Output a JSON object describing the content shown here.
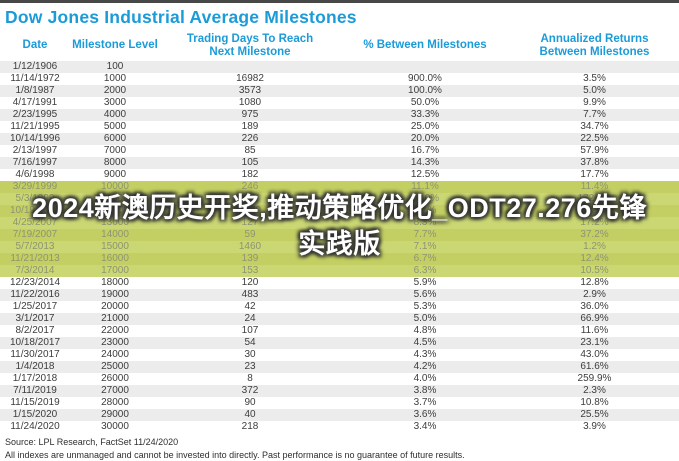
{
  "title": "Dow Jones Industrial Average Milestones",
  "header": [
    {
      "label": "Date"
    },
    {
      "label": "Milestone Level"
    },
    {
      "label": "Trading Days To Reach",
      "label2": "Next Milestone"
    },
    {
      "label": "% Between Milestones"
    },
    {
      "label": "Annualized Returns",
      "label2": "Between Milestones"
    }
  ],
  "chart_data": {
    "type": "table",
    "title": "Dow Jones Industrial Average Milestones",
    "columns": [
      "Date",
      "Milestone Level",
      "Trading Days To Reach Next Milestone",
      "% Between Milestones",
      "Annualized Returns Between Milestones"
    ],
    "rows": [
      {
        "date": "1/12/1906",
        "level": "100",
        "days": "",
        "pct": "",
        "annualized": ""
      },
      {
        "date": "11/14/1972",
        "level": "1000",
        "days": "16982",
        "pct": "900.0%",
        "annualized": "3.5%"
      },
      {
        "date": "1/8/1987",
        "level": "2000",
        "days": "3573",
        "pct": "100.0%",
        "annualized": "5.0%"
      },
      {
        "date": "4/17/1991",
        "level": "3000",
        "days": "1080",
        "pct": "50.0%",
        "annualized": "9.9%"
      },
      {
        "date": "2/23/1995",
        "level": "4000",
        "days": "975",
        "pct": "33.3%",
        "annualized": "7.7%"
      },
      {
        "date": "11/21/1995",
        "level": "5000",
        "days": "189",
        "pct": "25.0%",
        "annualized": "34.7%"
      },
      {
        "date": "10/14/1996",
        "level": "6000",
        "days": "226",
        "pct": "20.0%",
        "annualized": "22.5%"
      },
      {
        "date": "2/13/1997",
        "level": "7000",
        "days": "85",
        "pct": "16.7%",
        "annualized": "57.9%"
      },
      {
        "date": "7/16/1997",
        "level": "8000",
        "days": "105",
        "pct": "14.3%",
        "annualized": "37.8%"
      },
      {
        "date": "4/6/1998",
        "level": "9000",
        "days": "182",
        "pct": "12.5%",
        "annualized": "17.7%"
      },
      {
        "date": "3/29/1999",
        "level": "10000",
        "days": "246",
        "pct": "11.1%",
        "annualized": "11.4%",
        "highlight": true
      },
      {
        "date": "5/3/1999",
        "level": "11000",
        "days": "24",
        "pct": "10.0%",
        "annualized": "172.0%",
        "highlight": true
      },
      {
        "date": "10/19/2006",
        "level": "12000",
        "days": "1879",
        "pct": "9.1%",
        "annualized": "1.2%",
        "highlight": true
      },
      {
        "date": "4/25/2007",
        "level": "13000",
        "days": "127",
        "pct": "8.3%",
        "annualized": "17.2%",
        "highlight": true
      },
      {
        "date": "7/19/2007",
        "level": "14000",
        "days": "59",
        "pct": "7.7%",
        "annualized": "37.2%",
        "highlight": true
      },
      {
        "date": "5/7/2013",
        "level": "15000",
        "days": "1460",
        "pct": "7.1%",
        "annualized": "1.2%",
        "highlight": true
      },
      {
        "date": "11/21/2013",
        "level": "16000",
        "days": "139",
        "pct": "6.7%",
        "annualized": "12.4%",
        "highlight": true
      },
      {
        "date": "7/3/2014",
        "level": "17000",
        "days": "153",
        "pct": "6.3%",
        "annualized": "10.5%",
        "highlight": true
      },
      {
        "date": "12/23/2014",
        "level": "18000",
        "days": "120",
        "pct": "5.9%",
        "annualized": "12.8%"
      },
      {
        "date": "11/22/2016",
        "level": "19000",
        "days": "483",
        "pct": "5.6%",
        "annualized": "2.9%"
      },
      {
        "date": "1/25/2017",
        "level": "20000",
        "days": "42",
        "pct": "5.3%",
        "annualized": "36.0%"
      },
      {
        "date": "3/1/2017",
        "level": "21000",
        "days": "24",
        "pct": "5.0%",
        "annualized": "66.9%"
      },
      {
        "date": "8/2/2017",
        "level": "22000",
        "days": "107",
        "pct": "4.8%",
        "annualized": "11.6%"
      },
      {
        "date": "10/18/2017",
        "level": "23000",
        "days": "54",
        "pct": "4.5%",
        "annualized": "23.1%"
      },
      {
        "date": "11/30/2017",
        "level": "24000",
        "days": "30",
        "pct": "4.3%",
        "annualized": "43.0%"
      },
      {
        "date": "1/4/2018",
        "level": "25000",
        "days": "23",
        "pct": "4.2%",
        "annualized": "61.6%"
      },
      {
        "date": "1/17/2018",
        "level": "26000",
        "days": "8",
        "pct": "4.0%",
        "annualized": "259.9%"
      },
      {
        "date": "7/11/2019",
        "level": "27000",
        "days": "372",
        "pct": "3.8%",
        "annualized": "2.3%"
      },
      {
        "date": "11/15/2019",
        "level": "28000",
        "days": "90",
        "pct": "3.7%",
        "annualized": "10.8%"
      },
      {
        "date": "1/15/2020",
        "level": "29000",
        "days": "40",
        "pct": "3.6%",
        "annualized": "25.5%"
      },
      {
        "date": "11/24/2020",
        "level": "30000",
        "days": "218",
        "pct": "3.4%",
        "annualized": "3.9%"
      }
    ]
  },
  "watermark": {
    "line1": "2024新澳历史开奖,推动策略优化_ODT27.276先锋",
    "line2": "实践版"
  },
  "footer": {
    "source": "Source: LPL Research, FactSet 11/24/2020",
    "disclaimer": "All indexes are unmanaged and cannot be invested into directly. Past performance is no guarantee of future results."
  },
  "colors": {
    "accent_blue": "#1b9bd8",
    "top_bar": "#474747",
    "stripe_gray": "#ececec",
    "highlight_dark": "#c3cf62",
    "highlight_light": "#cbd773"
  }
}
